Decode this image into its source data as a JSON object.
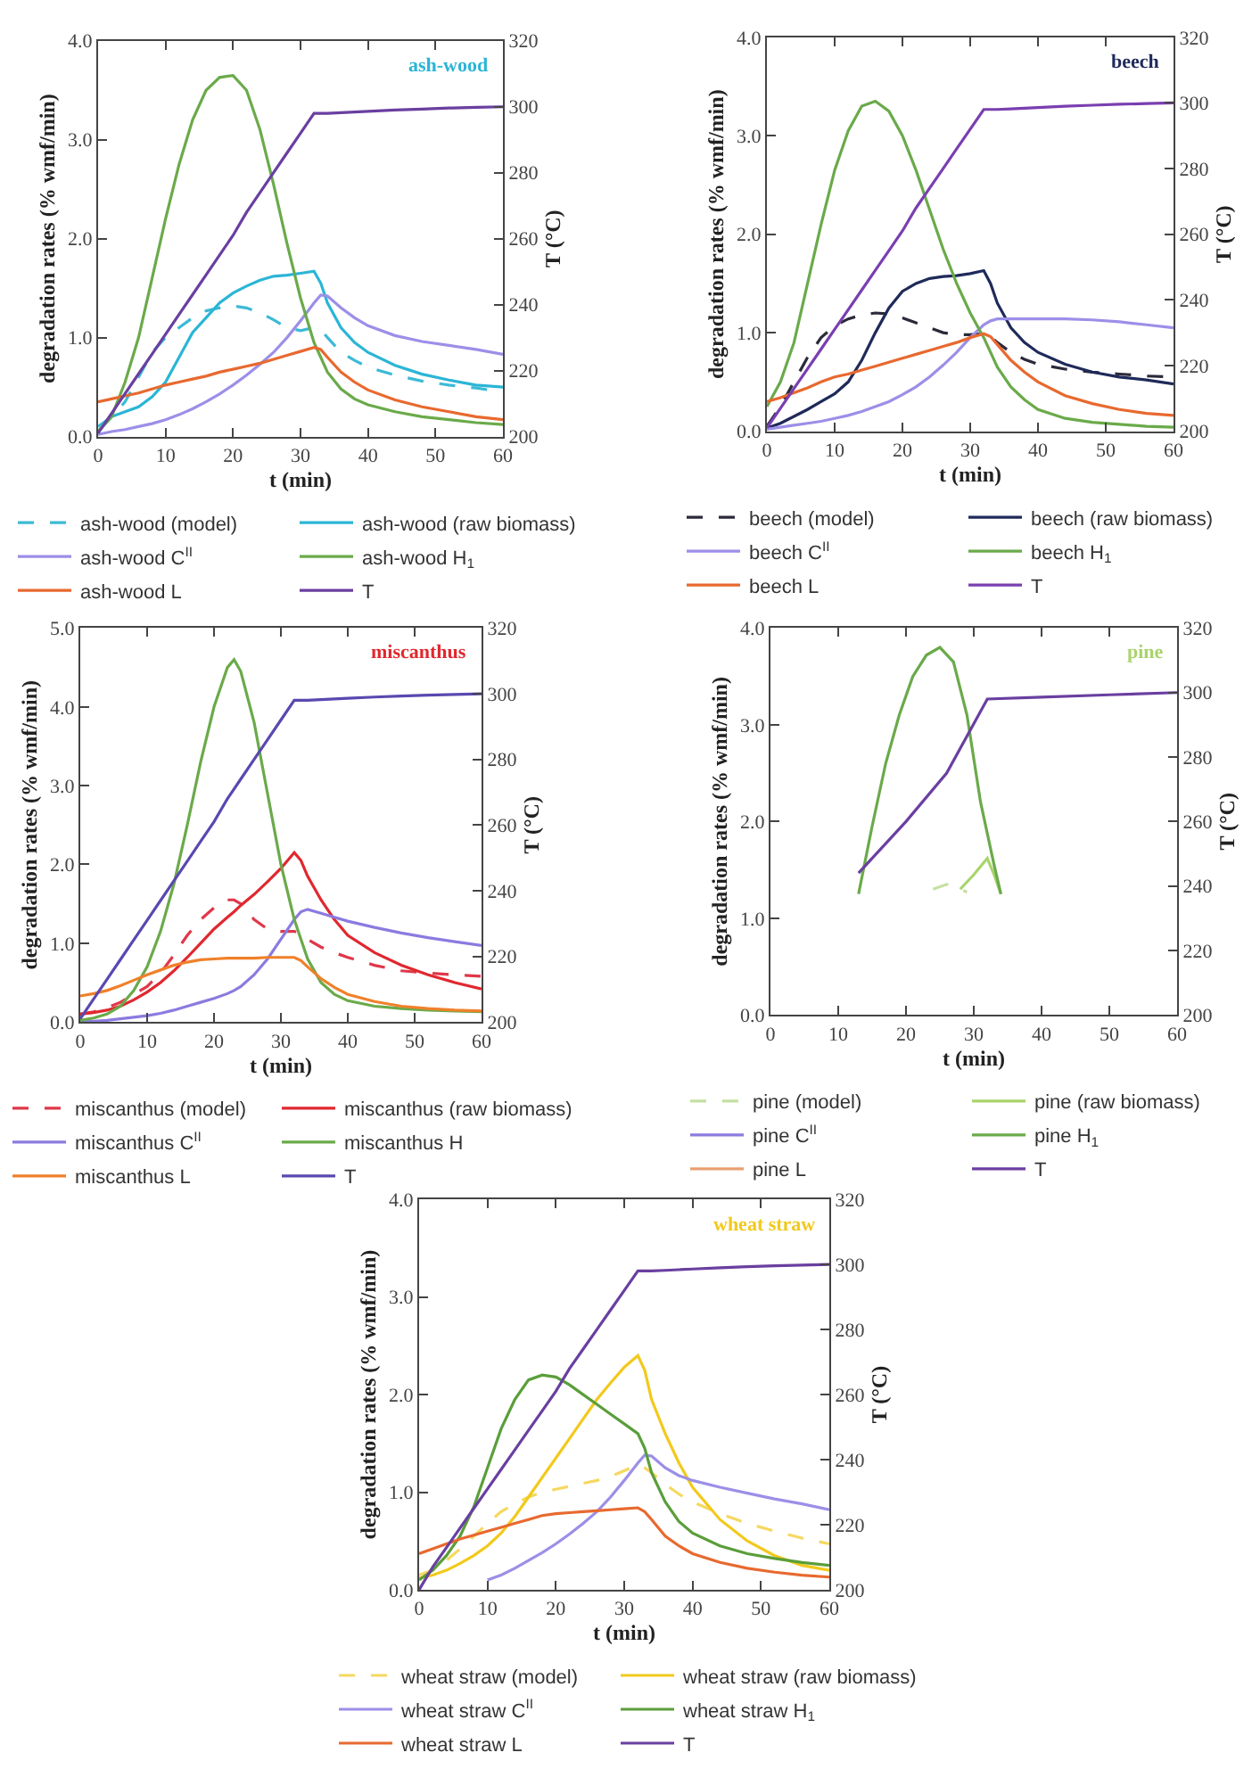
{
  "chart_data": [
    {
      "type": "line",
      "title": "ash-wood",
      "xlabel": "t (min)",
      "ylabel": "degradation rates (% wmf/min)",
      "y2label": "T (°C)",
      "legend": "bottom",
      "x": [
        0,
        2,
        4,
        6,
        8,
        10,
        12,
        14,
        16,
        18,
        20,
        22,
        24,
        26,
        28,
        30,
        32,
        33,
        34,
        36,
        38,
        40,
        44,
        48,
        52,
        56,
        60
      ],
      "xlim": [
        0,
        60
      ],
      "xticks": [
        0,
        10,
        20,
        30,
        40,
        50,
        60
      ],
      "ylim": [
        0,
        4
      ],
      "yticks": [
        {
          "value": 0,
          "label": "0.0"
        },
        {
          "value": 1,
          "label": "1.0"
        },
        {
          "value": 2,
          "label": "2.0"
        },
        {
          "value": 3,
          "label": "3.0"
        },
        {
          "value": 4,
          "label": "4.0"
        }
      ],
      "y2lim": [
        200,
        320
      ],
      "y2ticks": [
        200,
        220,
        240,
        260,
        280,
        300,
        320
      ],
      "series": [
        {
          "name": "ash-wood (model)",
          "color": "#3cbad6",
          "line_style": "dashed",
          "values": [
            0.1,
            0.2,
            0.35,
            0.6,
            0.85,
            1.0,
            1.1,
            1.2,
            1.27,
            1.3,
            1.32,
            1.3,
            1.25,
            1.18,
            1.1,
            1.07,
            1.1,
            1.08,
            1.0,
            0.85,
            0.77,
            0.7,
            0.62,
            0.56,
            0.52,
            0.49,
            0.45
          ]
        },
        {
          "name": "ash-wood (raw biomass)",
          "color": "#2bb5d6",
          "values": [
            0.05,
            0.2,
            0.25,
            0.3,
            0.4,
            0.55,
            0.8,
            1.05,
            1.2,
            1.35,
            1.45,
            1.52,
            1.58,
            1.62,
            1.63,
            1.65,
            1.67,
            1.55,
            1.35,
            1.1,
            0.95,
            0.85,
            0.72,
            0.63,
            0.57,
            0.52,
            0.5
          ]
        },
        {
          "name": "ash-wood C$^{II}$",
          "color": "#9b8fe8",
          "values": [
            0.02,
            0.05,
            0.07,
            0.1,
            0.13,
            0.17,
            0.22,
            0.28,
            0.35,
            0.43,
            0.52,
            0.62,
            0.73,
            0.85,
            1.0,
            1.17,
            1.35,
            1.43,
            1.42,
            1.3,
            1.2,
            1.12,
            1.02,
            0.96,
            0.92,
            0.88,
            0.83
          ]
        },
        {
          "name": "ash-wood H$_{1}$",
          "color": "#6aaa4a",
          "values": [
            0.05,
            0.2,
            0.55,
            1.0,
            1.6,
            2.2,
            2.75,
            3.2,
            3.5,
            3.63,
            3.65,
            3.5,
            3.1,
            2.55,
            1.95,
            1.4,
            0.95,
            0.8,
            0.65,
            0.48,
            0.38,
            0.32,
            0.25,
            0.2,
            0.17,
            0.14,
            0.12
          ]
        },
        {
          "name": "ash-wood L",
          "color": "#e8692f",
          "values": [
            0.35,
            0.38,
            0.41,
            0.44,
            0.48,
            0.52,
            0.55,
            0.58,
            0.61,
            0.65,
            0.68,
            0.71,
            0.74,
            0.78,
            0.82,
            0.86,
            0.9,
            0.88,
            0.8,
            0.65,
            0.55,
            0.47,
            0.37,
            0.3,
            0.25,
            0.2,
            0.17
          ]
        },
        {
          "name": "T",
          "color": "#6a3fa0",
          "axis": "y2",
          "values": [
            201,
            207,
            213,
            219,
            225,
            231,
            237,
            243,
            249,
            255,
            261,
            268,
            274,
            280,
            286,
            292,
            298,
            298,
            298,
            298.2,
            298.4,
            298.6,
            299,
            299.3,
            299.6,
            299.8,
            300
          ]
        }
      ]
    },
    {
      "type": "line",
      "title": "beech",
      "xlabel": "t (min)",
      "ylabel": "degradation rates (% wmf/min)",
      "y2label": "T (°C)",
      "legend": "bottom",
      "x": [
        0,
        2,
        4,
        6,
        8,
        10,
        12,
        14,
        16,
        18,
        20,
        22,
        24,
        26,
        28,
        30,
        32,
        33,
        34,
        36,
        38,
        40,
        44,
        48,
        52,
        56,
        60
      ],
      "xlim": [
        0,
        60
      ],
      "xticks": [
        0,
        10,
        20,
        30,
        40,
        50,
        60
      ],
      "ylim": [
        0,
        4
      ],
      "yticks": [
        {
          "value": 0,
          "label": "0.0"
        },
        {
          "value": 1,
          "label": "1.0"
        },
        {
          "value": 2,
          "label": "2.0"
        },
        {
          "value": 3,
          "label": "3.0"
        },
        {
          "value": 4,
          "label": "4.0"
        }
      ],
      "y2lim": [
        200,
        320
      ],
      "y2ticks": [
        200,
        220,
        240,
        260,
        280,
        300,
        320
      ],
      "series": [
        {
          "name": "beech (model)",
          "color": "#2a2a3a",
          "line_style": "dashed",
          "values": [
            0.05,
            0.25,
            0.5,
            0.75,
            0.95,
            1.07,
            1.14,
            1.18,
            1.2,
            1.19,
            1.15,
            1.1,
            1.05,
            1.0,
            0.98,
            0.98,
            0.99,
            0.96,
            0.9,
            0.8,
            0.73,
            0.68,
            0.63,
            0.6,
            0.58,
            0.56,
            0.55
          ]
        },
        {
          "name": "beech (raw biomass)",
          "color": "#1f2a5a",
          "values": [
            0.03,
            0.08,
            0.15,
            0.22,
            0.3,
            0.38,
            0.5,
            0.72,
            1.0,
            1.25,
            1.42,
            1.5,
            1.55,
            1.57,
            1.58,
            1.6,
            1.63,
            1.5,
            1.3,
            1.05,
            0.9,
            0.8,
            0.68,
            0.6,
            0.55,
            0.52,
            0.48
          ]
        },
        {
          "name": "beech C$^{II}$",
          "color": "#9b8fe8",
          "values": [
            0.02,
            0.04,
            0.06,
            0.08,
            0.1,
            0.13,
            0.16,
            0.2,
            0.25,
            0.3,
            0.37,
            0.45,
            0.55,
            0.67,
            0.8,
            0.95,
            1.08,
            1.12,
            1.14,
            1.14,
            1.14,
            1.14,
            1.14,
            1.13,
            1.11,
            1.08,
            1.05
          ]
        },
        {
          "name": "beech H$_{1}$",
          "color": "#6aaa4a",
          "values": [
            0.25,
            0.5,
            0.9,
            1.5,
            2.1,
            2.65,
            3.05,
            3.3,
            3.35,
            3.25,
            3.0,
            2.65,
            2.25,
            1.85,
            1.5,
            1.2,
            0.95,
            0.8,
            0.65,
            0.45,
            0.32,
            0.22,
            0.13,
            0.09,
            0.07,
            0.05,
            0.04
          ]
        },
        {
          "name": "beech L",
          "color": "#e8692f",
          "values": [
            0.3,
            0.34,
            0.39,
            0.44,
            0.5,
            0.55,
            0.58,
            0.62,
            0.66,
            0.7,
            0.74,
            0.78,
            0.82,
            0.86,
            0.9,
            0.95,
            0.99,
            0.96,
            0.88,
            0.72,
            0.6,
            0.5,
            0.36,
            0.28,
            0.22,
            0.18,
            0.16
          ]
        },
        {
          "name": "T",
          "color": "#7a3fb0",
          "axis": "y2",
          "values": [
            201,
            207,
            213,
            219,
            225,
            231,
            237,
            243,
            249,
            255,
            261,
            268,
            274,
            280,
            286,
            292,
            298,
            298,
            298,
            298.2,
            298.4,
            298.6,
            299,
            299.3,
            299.6,
            299.8,
            300
          ]
        }
      ]
    },
    {
      "type": "line",
      "title": "miscanthus",
      "xlabel": "t (min)",
      "ylabel": "degradation rates (% wmf/min)",
      "y2label": "T (°C)",
      "legend": "bottom",
      "x": [
        0,
        2,
        4,
        6,
        8,
        10,
        12,
        14,
        16,
        18,
        20,
        22,
        23,
        24,
        26,
        28,
        30,
        32,
        33,
        34,
        36,
        38,
        40,
        44,
        48,
        52,
        56,
        60
      ],
      "xlim": [
        0,
        60
      ],
      "xticks": [
        0,
        10,
        20,
        30,
        40,
        50,
        60
      ],
      "ylim": [
        0,
        5
      ],
      "yticks": [
        {
          "value": 0,
          "label": "0.0"
        },
        {
          "value": 1,
          "label": "1.0"
        },
        {
          "value": 2,
          "label": "2.0"
        },
        {
          "value": 3,
          "label": "3.0"
        },
        {
          "value": 4,
          "label": "4.0"
        },
        {
          "value": 5,
          "label": "5.0"
        }
      ],
      "y2lim": [
        200,
        320
      ],
      "y2ticks": [
        200,
        220,
        240,
        260,
        280,
        300,
        320
      ],
      "series": [
        {
          "name": "miscanthus (model)",
          "color": "#e0384a",
          "line_style": "dashed",
          "values": [
            0.1,
            0.13,
            0.18,
            0.25,
            0.35,
            0.45,
            0.62,
            0.85,
            1.1,
            1.3,
            1.45,
            1.55,
            1.55,
            1.5,
            1.3,
            1.18,
            1.15,
            1.15,
            1.12,
            1.05,
            0.95,
            0.88,
            0.82,
            0.72,
            0.65,
            0.62,
            0.6,
            0.58
          ]
        },
        {
          "name": "miscanthus (raw biomass)",
          "color": "#e0282f",
          "values": [
            0.1,
            0.12,
            0.15,
            0.2,
            0.28,
            0.38,
            0.5,
            0.65,
            0.82,
            1.0,
            1.18,
            1.33,
            1.4,
            1.48,
            1.62,
            1.78,
            1.95,
            2.15,
            2.05,
            1.85,
            1.55,
            1.3,
            1.1,
            0.88,
            0.72,
            0.6,
            0.5,
            0.42
          ]
        },
        {
          "name": "miscanthus C$^{II}$",
          "color": "#8a7be0",
          "values": [
            0.0,
            0.01,
            0.02,
            0.04,
            0.06,
            0.08,
            0.11,
            0.15,
            0.2,
            0.25,
            0.3,
            0.36,
            0.4,
            0.45,
            0.6,
            0.8,
            1.05,
            1.3,
            1.4,
            1.43,
            1.38,
            1.33,
            1.28,
            1.2,
            1.13,
            1.07,
            1.02,
            0.97
          ]
        },
        {
          "name": "miscanthus H",
          "color": "#6aaa4a",
          "values": [
            0.02,
            0.05,
            0.1,
            0.2,
            0.4,
            0.7,
            1.15,
            1.75,
            2.5,
            3.3,
            4.0,
            4.5,
            4.6,
            4.45,
            3.8,
            2.9,
            2.0,
            1.3,
            1.05,
            0.8,
            0.5,
            0.35,
            0.27,
            0.2,
            0.17,
            0.15,
            0.14,
            0.13
          ]
        },
        {
          "name": "miscanthus L",
          "color": "#f0802a",
          "values": [
            0.33,
            0.36,
            0.4,
            0.46,
            0.53,
            0.6,
            0.66,
            0.72,
            0.76,
            0.79,
            0.8,
            0.81,
            0.81,
            0.81,
            0.81,
            0.82,
            0.82,
            0.82,
            0.78,
            0.7,
            0.55,
            0.44,
            0.35,
            0.26,
            0.2,
            0.17,
            0.15,
            0.14
          ]
        },
        {
          "name": "T",
          "color": "#5a48b0",
          "axis": "y2",
          "values": [
            201,
            207,
            213,
            219,
            225,
            231,
            237,
            243,
            249,
            255,
            261,
            268,
            271,
            274,
            280,
            286,
            292,
            298,
            298,
            298,
            298.2,
            298.4,
            298.6,
            299,
            299.3,
            299.6,
            299.8,
            300
          ]
        }
      ]
    },
    {
      "type": "line",
      "title": "pine",
      "xlabel": "t (min)",
      "ylabel": "degradation rates (% wmf/min)",
      "y2label": "T (°C)",
      "legend": "bottom",
      "xlim": [
        0,
        60
      ],
      "xticks": [
        0,
        10,
        20,
        30,
        40,
        50,
        60
      ],
      "ylim": [
        0,
        4
      ],
      "yticks": [
        {
          "value": 0,
          "label": "0.0"
        },
        {
          "value": 1,
          "label": "1.0"
        },
        {
          "value": 2,
          "label": "2.0"
        },
        {
          "value": 3,
          "label": "3.0"
        },
        {
          "value": 4,
          "label": "4.0"
        }
      ],
      "y2lim": [
        200,
        320
      ],
      "y2ticks": [
        200,
        220,
        240,
        260,
        280,
        300,
        320
      ],
      "series": [
        {
          "name": "pine (model)",
          "color": "#c5e0a0",
          "line_style": "dashed",
          "x": [
            24,
            26,
            28,
            29
          ],
          "values": [
            1.3,
            1.35,
            1.3,
            1.27
          ]
        },
        {
          "name": "pine (raw biomass)",
          "color": "#a9d46a",
          "x": [
            28,
            30,
            32,
            33,
            34
          ],
          "values": [
            1.3,
            1.45,
            1.62,
            1.45,
            1.25
          ]
        },
        {
          "name": "pine C$^{II}$",
          "color": "#8a7be0"
        },
        {
          "name": "pine H$_{1}$",
          "color": "#6aaa4a",
          "x": [
            13,
            15,
            17,
            19,
            21,
            23,
            25,
            27,
            29,
            31,
            33,
            34
          ],
          "values": [
            1.25,
            1.95,
            2.6,
            3.1,
            3.5,
            3.72,
            3.8,
            3.65,
            3.1,
            2.2,
            1.55,
            1.25
          ]
        },
        {
          "name": "pine L",
          "color": "#e8a070"
        },
        {
          "name": "T",
          "color": "#6a3fa0",
          "axis": "y2",
          "x": [
            13,
            20,
            26,
            32,
            40,
            50,
            60
          ],
          "values": [
            244,
            260,
            275,
            298,
            298.6,
            299.3,
            300
          ]
        }
      ]
    },
    {
      "type": "line",
      "title": "wheat straw",
      "xlabel": "t (min)",
      "ylabel": "degradation rates (% wmf/min)",
      "y2label": "T (°C)",
      "legend": "bottom",
      "x": [
        0,
        2,
        4,
        6,
        8,
        10,
        12,
        14,
        16,
        18,
        20,
        22,
        24,
        26,
        28,
        30,
        32,
        33,
        34,
        36,
        38,
        40,
        44,
        48,
        52,
        56,
        60
      ],
      "xlim": [
        0,
        60
      ],
      "xticks": [
        0,
        10,
        20,
        30,
        40,
        50,
        60
      ],
      "ylim": [
        0,
        4
      ],
      "yticks": [
        {
          "value": 0,
          "label": "0.0"
        },
        {
          "value": 1,
          "label": "1.0"
        },
        {
          "value": 2,
          "label": "2.0"
        },
        {
          "value": 3,
          "label": "3.0"
        },
        {
          "value": 4,
          "label": "4.0"
        }
      ],
      "y2lim": [
        200,
        320
      ],
      "y2ticks": [
        200,
        220,
        240,
        260,
        280,
        300,
        320
      ],
      "series": [
        {
          "name": "wheat straw (model)",
          "color": "#f5d860",
          "line_style": "dashed",
          "values": [
            0.15,
            0.2,
            0.3,
            0.42,
            0.55,
            0.68,
            0.8,
            0.88,
            0.95,
            1.0,
            1.03,
            1.06,
            1.09,
            1.12,
            1.16,
            1.22,
            1.28,
            1.25,
            1.2,
            1.08,
            0.98,
            0.9,
            0.78,
            0.68,
            0.6,
            0.53,
            0.47
          ]
        },
        {
          "name": "wheat straw (raw biomass)",
          "color": "#f2c91c",
          "values": [
            0.12,
            0.15,
            0.2,
            0.27,
            0.35,
            0.45,
            0.58,
            0.75,
            0.95,
            1.15,
            1.35,
            1.55,
            1.75,
            1.95,
            2.12,
            2.28,
            2.4,
            2.25,
            1.95,
            1.6,
            1.3,
            1.05,
            0.72,
            0.5,
            0.35,
            0.25,
            0.2
          ]
        },
        {
          "name": "wheat straw C$^{II}$",
          "color": "#9b8fe8",
          "values": [
            null,
            null,
            null,
            null,
            null,
            0.1,
            0.15,
            0.22,
            0.3,
            0.38,
            0.47,
            0.57,
            0.68,
            0.8,
            0.95,
            1.12,
            1.3,
            1.38,
            1.37,
            1.25,
            1.17,
            1.12,
            1.05,
            0.99,
            0.93,
            0.88,
            0.82
          ]
        },
        {
          "name": "wheat straw H$_{1}$",
          "color": "#5a9e3a",
          "values": [
            0.1,
            0.2,
            0.35,
            0.55,
            0.85,
            1.25,
            1.65,
            1.95,
            2.15,
            2.2,
            2.18,
            2.1,
            2.0,
            1.9,
            1.8,
            1.7,
            1.6,
            1.45,
            1.2,
            0.9,
            0.7,
            0.58,
            0.45,
            0.37,
            0.32,
            0.28,
            0.25
          ]
        },
        {
          "name": "wheat straw L",
          "color": "#e8692f",
          "values": [
            0.37,
            0.42,
            0.47,
            0.52,
            0.56,
            0.6,
            0.64,
            0.68,
            0.72,
            0.76,
            0.78,
            0.79,
            0.8,
            0.81,
            0.82,
            0.83,
            0.84,
            0.8,
            0.72,
            0.55,
            0.45,
            0.37,
            0.28,
            0.22,
            0.18,
            0.15,
            0.13
          ]
        },
        {
          "name": "T",
          "color": "#6a3fa0",
          "axis": "y2",
          "values": [
            200,
            207,
            213,
            219,
            225,
            231,
            237,
            243,
            249,
            255,
            261,
            268,
            274,
            280,
            286,
            292,
            298,
            298,
            298,
            298.2,
            298.4,
            298.6,
            299,
            299.3,
            299.6,
            299.8,
            300
          ]
        }
      ]
    }
  ]
}
